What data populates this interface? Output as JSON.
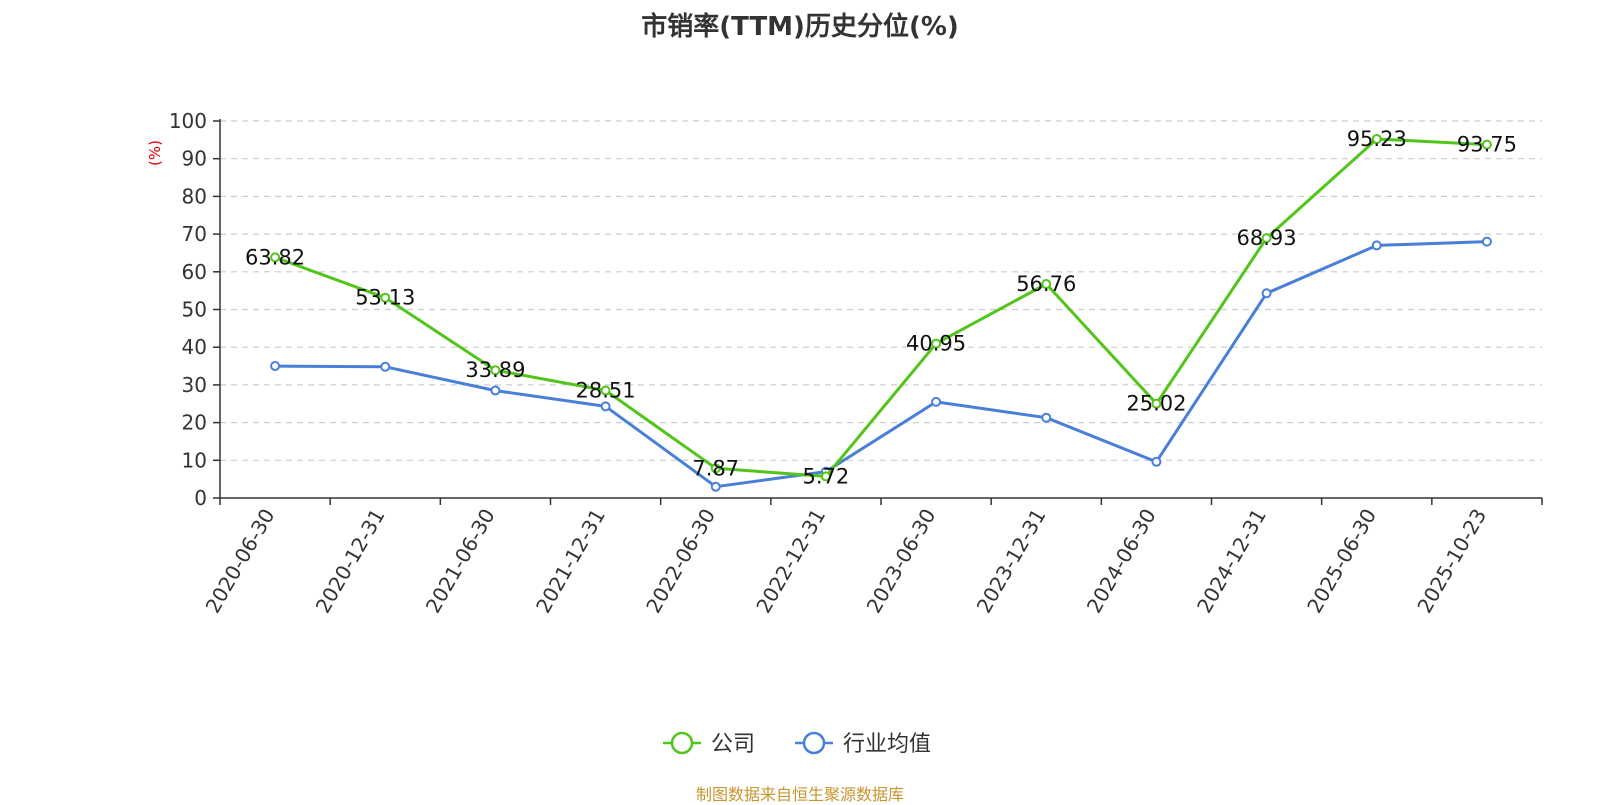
{
  "chart_data": {
    "type": "line",
    "title": "市销率(TTM)历史分位(%)",
    "ylabel": "(%)",
    "ylim": [
      0,
      100
    ],
    "yticks": [
      0,
      10,
      20,
      30,
      40,
      50,
      60,
      70,
      80,
      90,
      100
    ],
    "grid": true,
    "legend_position": "bottom-center",
    "categories": [
      "2020-06-30",
      "2020-12-31",
      "2021-06-30",
      "2021-12-31",
      "2022-06-30",
      "2022-12-31",
      "2023-06-30",
      "2023-12-31",
      "2024-06-30",
      "2024-12-31",
      "2025-06-30",
      "2025-10-23"
    ],
    "series": [
      {
        "name": "公司",
        "color": "#52c41a",
        "values": [
          63.82,
          53.13,
          33.89,
          28.51,
          7.87,
          5.72,
          40.95,
          56.76,
          25.02,
          68.93,
          95.23,
          93.75
        ],
        "labels": [
          "63.82",
          "53.13",
          "33.89",
          "28.51",
          "7.87",
          "5.72",
          "40.95",
          "56.76",
          "25.02",
          "68.93",
          "95.23",
          "93.75"
        ]
      },
      {
        "name": "行业均值",
        "color": "#4a7fd8",
        "values": [
          35.0,
          34.8,
          28.5,
          24.3,
          3.0,
          7.0,
          25.5,
          21.3,
          9.6,
          54.3,
          67.0,
          68.0
        ]
      }
    ]
  },
  "footer": {
    "source": "制图数据来自恒生聚源数据库"
  },
  "colors": {
    "axis": "#333333",
    "grid": "#cccccc",
    "ylabel": "#e00000",
    "source": "#c8952d"
  }
}
